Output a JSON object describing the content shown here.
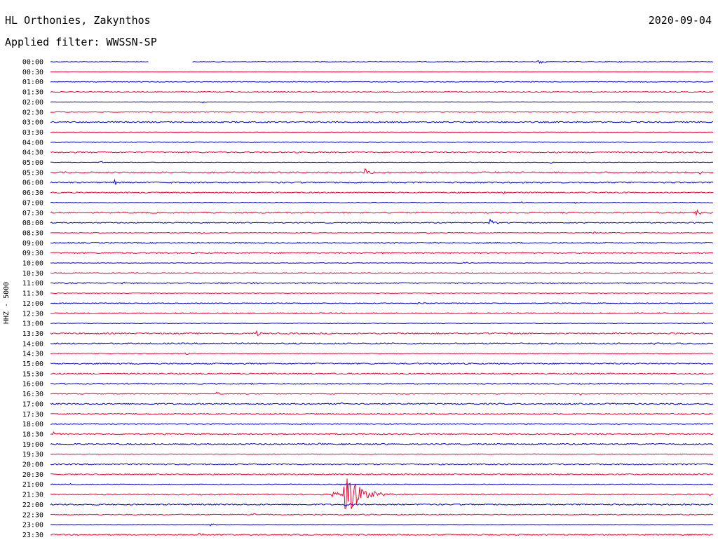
{
  "header": {
    "station": "HL Orthonies, Zakynthos",
    "date": "2020-09-04",
    "filter": "Applied filter: WWSSN-SP"
  },
  "chart_data": {
    "type": "line",
    "title": "HL Orthonies, Zakynthos",
    "subtitle": "Applied filter: WWSSN-SP",
    "ylabel": "HHZ - 5000",
    "xlabel": "",
    "series_colors": [
      "#0000cc",
      "#ee0033"
    ],
    "rows": [
      {
        "label": "00:00",
        "color": "#0000cc",
        "gaps": [
          [
            0.148,
            0.214
          ]
        ],
        "noise": 0.5,
        "events": [
          {
            "t": 0.735,
            "amp": 5
          },
          {
            "t": 0.855,
            "amp": 2
          }
        ]
      },
      {
        "label": "00:30",
        "color": "#ee0033",
        "gaps": [],
        "noise": 0.3,
        "events": []
      },
      {
        "label": "01:00",
        "color": "#0000cc",
        "gaps": [],
        "noise": 0.5,
        "events": []
      },
      {
        "label": "01:30",
        "color": "#ee0033",
        "gaps": [],
        "noise": 0.6,
        "events": []
      },
      {
        "label": "02:00",
        "color": "#0000cc",
        "gaps": [],
        "noise": 0.3,
        "events": [
          {
            "t": 0.228,
            "amp": 2
          },
          {
            "t": 0.885,
            "amp": 2
          }
        ]
      },
      {
        "label": "02:30",
        "color": "#ee0033",
        "gaps": [],
        "noise": 0.5,
        "events": []
      },
      {
        "label": "03:00",
        "color": "#0000cc",
        "gaps": [],
        "noise": 0.9,
        "events": []
      },
      {
        "label": "03:30",
        "color": "#ee0033",
        "gaps": [],
        "noise": 0.3,
        "events": []
      },
      {
        "label": "04:00",
        "color": "#0000cc",
        "gaps": [],
        "noise": 0.6,
        "events": []
      },
      {
        "label": "04:30",
        "color": "#ee0033",
        "gaps": [],
        "noise": 0.9,
        "events": []
      },
      {
        "label": "05:00",
        "color": "#0000cc",
        "gaps": [],
        "noise": 0.4,
        "events": [
          {
            "t": 0.075,
            "amp": 1.5
          },
          {
            "t": 0.755,
            "amp": 2.5
          },
          {
            "t": 0.83,
            "amp": 1.5
          }
        ]
      },
      {
        "label": "05:30",
        "color": "#ee0033",
        "gaps": [],
        "noise": 0.9,
        "events": [
          {
            "t": 0.474,
            "amp": 8
          },
          {
            "t": 0.98,
            "amp": 3
          }
        ]
      },
      {
        "label": "06:00",
        "color": "#0000cc",
        "gaps": [],
        "noise": 0.9,
        "events": [
          {
            "t": 0.096,
            "amp": 4
          }
        ]
      },
      {
        "label": "06:30",
        "color": "#ee0033",
        "gaps": [],
        "noise": 0.8,
        "events": [
          {
            "t": 0.615,
            "amp": 2
          },
          {
            "t": 0.682,
            "amp": 3
          },
          {
            "t": 0.82,
            "amp": 1.5
          }
        ]
      },
      {
        "label": "07:00",
        "color": "#0000cc",
        "gaps": [],
        "noise": 0.4,
        "events": [
          {
            "t": 0.71,
            "amp": 2
          },
          {
            "t": 0.79,
            "amp": 1.5
          }
        ]
      },
      {
        "label": "07:30",
        "color": "#ee0033",
        "gaps": [],
        "noise": 0.9,
        "events": [
          {
            "t": 0.972,
            "amp": 7
          }
        ]
      },
      {
        "label": "08:00",
        "color": "#0000cc",
        "gaps": [],
        "noise": 0.7,
        "events": [
          {
            "t": 0.213,
            "amp": 2
          },
          {
            "t": 0.662,
            "amp": 6
          }
        ]
      },
      {
        "label": "08:30",
        "color": "#ee0033",
        "gaps": [],
        "noise": 0.5,
        "events": [
          {
            "t": 0.228,
            "amp": 2
          },
          {
            "t": 0.57,
            "amp": 1.5
          },
          {
            "t": 0.82,
            "amp": 2
          }
        ]
      },
      {
        "label": "09:00",
        "color": "#0000cc",
        "gaps": [],
        "noise": 0.9,
        "events": []
      },
      {
        "label": "09:30",
        "color": "#ee0033",
        "gaps": [],
        "noise": 0.9,
        "events": [
          {
            "t": 0.5,
            "amp": 1.5
          }
        ]
      },
      {
        "label": "10:00",
        "color": "#0000cc",
        "gaps": [],
        "noise": 0.4,
        "events": [
          {
            "t": 0.625,
            "amp": 3
          },
          {
            "t": 0.8,
            "amp": 1.5
          }
        ]
      },
      {
        "label": "10:30",
        "color": "#ee0033",
        "gaps": [],
        "noise": 0.6,
        "events": []
      },
      {
        "label": "11:00",
        "color": "#0000cc",
        "gaps": [],
        "noise": 0.8,
        "events": [
          {
            "t": 0.107,
            "amp": 2
          },
          {
            "t": 0.305,
            "amp": 1.5
          }
        ]
      },
      {
        "label": "11:30",
        "color": "#ee0033",
        "gaps": [],
        "noise": 0.4,
        "events": [
          {
            "t": 0.9,
            "amp": 1.5
          }
        ]
      },
      {
        "label": "12:00",
        "color": "#0000cc",
        "gaps": [],
        "noise": 0.6,
        "events": [
          {
            "t": 0.555,
            "amp": 2
          }
        ]
      },
      {
        "label": "12:30",
        "color": "#ee0033",
        "gaps": [],
        "noise": 0.9,
        "events": []
      },
      {
        "label": "13:00",
        "color": "#0000cc",
        "gaps": [],
        "noise": 0.4,
        "events": [
          {
            "t": 0.985,
            "amp": 2
          }
        ]
      },
      {
        "label": "13:30",
        "color": "#ee0033",
        "gaps": [],
        "noise": 0.9,
        "events": [
          {
            "t": 0.31,
            "amp": 4
          },
          {
            "t": 0.65,
            "amp": 1.5
          }
        ]
      },
      {
        "label": "14:00",
        "color": "#0000cc",
        "gaps": [],
        "noise": 0.9,
        "events": [
          {
            "t": 0.91,
            "amp": 2
          }
        ]
      },
      {
        "label": "14:30",
        "color": "#ee0033",
        "gaps": [],
        "noise": 0.5,
        "events": [
          {
            "t": 0.203,
            "amp": 3
          }
        ]
      },
      {
        "label": "15:00",
        "color": "#0000cc",
        "gaps": [],
        "noise": 0.9,
        "events": []
      },
      {
        "label": "15:30",
        "color": "#ee0033",
        "gaps": [],
        "noise": 0.9,
        "events": [
          {
            "t": 0.697,
            "amp": 6
          }
        ]
      },
      {
        "label": "16:00",
        "color": "#0000cc",
        "gaps": [],
        "noise": 0.9,
        "events": []
      },
      {
        "label": "16:30",
        "color": "#ee0033",
        "gaps": [],
        "noise": 0.6,
        "events": [
          {
            "t": 0.25,
            "amp": 3
          },
          {
            "t": 0.8,
            "amp": 1.5
          }
        ]
      },
      {
        "label": "17:00",
        "color": "#0000cc",
        "gaps": [],
        "noise": 0.9,
        "events": [
          {
            "t": 0.437,
            "amp": 3
          }
        ]
      },
      {
        "label": "17:30",
        "color": "#ee0033",
        "gaps": [],
        "noise": 0.9,
        "events": []
      },
      {
        "label": "18:00",
        "color": "#0000cc",
        "gaps": [],
        "noise": 0.8,
        "events": [
          {
            "t": 0.996,
            "amp": 2
          }
        ]
      },
      {
        "label": "18:30",
        "color": "#ee0033",
        "gaps": [],
        "noise": 0.9,
        "events": [
          {
            "t": 0.002,
            "amp": 5
          },
          {
            "t": 0.57,
            "amp": 2
          }
        ]
      },
      {
        "label": "19:00",
        "color": "#0000cc",
        "gaps": [],
        "noise": 0.9,
        "events": [
          {
            "t": 0.404,
            "amp": 2
          }
        ]
      },
      {
        "label": "19:30",
        "color": "#ee0033",
        "gaps": [],
        "noise": 0.5,
        "events": []
      },
      {
        "label": "20:00",
        "color": "#0000cc",
        "gaps": [],
        "noise": 0.9,
        "events": []
      },
      {
        "label": "20:30",
        "color": "#ee0033",
        "gaps": [],
        "noise": 0.8,
        "events": [
          {
            "t": 0.77,
            "amp": 2
          }
        ]
      },
      {
        "label": "21:00",
        "color": "#0000cc",
        "gaps": [],
        "noise": 0.6,
        "events": [
          {
            "t": 0.03,
            "amp": 2
          },
          {
            "t": 0.165,
            "amp": 2
          },
          {
            "t": 0.44,
            "amp": 2
          }
        ]
      },
      {
        "label": "21:30",
        "color": "#ee0033",
        "gaps": [],
        "noise": 0.8,
        "events": [
          {
            "t": 0.425,
            "amp": 7
          },
          {
            "t": 0.443,
            "amp": 38
          },
          {
            "t": 0.995,
            "amp": 2
          }
        ]
      },
      {
        "label": "22:00",
        "color": "#0000cc",
        "gaps": [],
        "noise": 0.9,
        "events": [
          {
            "t": 0.445,
            "amp": 5
          }
        ]
      },
      {
        "label": "22:30",
        "color": "#ee0033",
        "gaps": [],
        "noise": 0.7,
        "events": [
          {
            "t": 0.305,
            "amp": 3
          }
        ]
      },
      {
        "label": "23:00",
        "color": "#0000cc",
        "gaps": [],
        "noise": 0.5,
        "events": [
          {
            "t": 0.24,
            "amp": 3
          }
        ]
      },
      {
        "label": "23:30",
        "color": "#ee0033",
        "gaps": [],
        "noise": 0.9,
        "events": [
          {
            "t": 0.222,
            "amp": 4
          }
        ]
      }
    ]
  }
}
